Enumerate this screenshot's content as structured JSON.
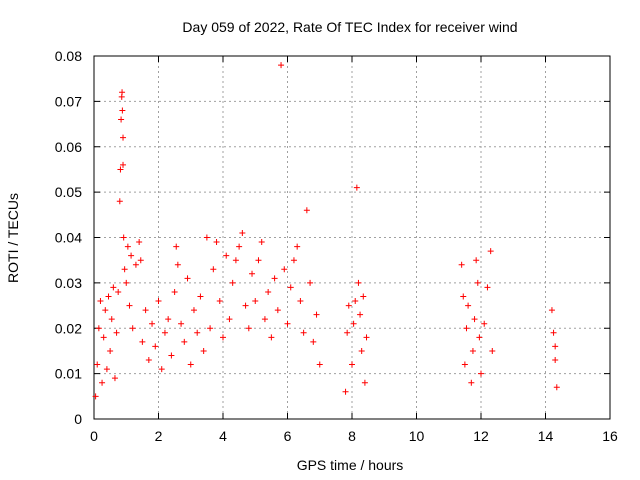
{
  "chart_data": {
    "type": "scatter",
    "title": "Day 059 of 2022, Rate Of TEC Index for receiver wind",
    "xlabel": "GPS time / hours",
    "ylabel": "ROTI / TECUs",
    "xlim": [
      0,
      16
    ],
    "ylim": [
      0,
      0.08
    ],
    "x_ticks": [
      0,
      2,
      4,
      6,
      8,
      10,
      12,
      14,
      16
    ],
    "y_ticks": [
      0,
      0.01,
      0.02,
      0.03,
      0.04,
      0.05,
      0.06,
      0.07,
      0.08
    ],
    "x_tick_labels": [
      "0",
      "2",
      "4",
      "6",
      "8",
      "10",
      "12",
      "14",
      "16"
    ],
    "y_tick_labels": [
      "0",
      "0.01",
      "0.02",
      "0.03",
      "0.04",
      "0.05",
      "0.06",
      "0.07",
      "0.08"
    ],
    "grid": true,
    "marker": "+",
    "color": "#ff0000",
    "series": [
      {
        "points": [
          [
            0.05,
            0.005
          ],
          [
            0.1,
            0.012
          ],
          [
            0.15,
            0.02
          ],
          [
            0.2,
            0.026
          ],
          [
            0.25,
            0.008
          ],
          [
            0.3,
            0.018
          ],
          [
            0.35,
            0.024
          ],
          [
            0.4,
            0.011
          ],
          [
            0.45,
            0.027
          ],
          [
            0.5,
            0.015
          ],
          [
            0.55,
            0.022
          ],
          [
            0.6,
            0.029
          ],
          [
            0.65,
            0.009
          ],
          [
            0.7,
            0.019
          ],
          [
            0.75,
            0.028
          ],
          [
            0.8,
            0.048
          ],
          [
            0.82,
            0.055
          ],
          [
            0.84,
            0.066
          ],
          [
            0.86,
            0.071
          ],
          [
            0.87,
            0.072
          ],
          [
            0.88,
            0.068
          ],
          [
            0.9,
            0.062
          ],
          [
            0.9,
            0.056
          ],
          [
            0.92,
            0.04
          ],
          [
            0.95,
            0.033
          ],
          [
            1.0,
            0.03
          ],
          [
            1.05,
            0.038
          ],
          [
            1.1,
            0.025
          ],
          [
            1.15,
            0.036
          ],
          [
            1.2,
            0.02
          ],
          [
            1.3,
            0.034
          ],
          [
            1.4,
            0.039
          ],
          [
            1.45,
            0.035
          ],
          [
            1.5,
            0.017
          ],
          [
            1.6,
            0.024
          ],
          [
            1.7,
            0.013
          ],
          [
            1.8,
            0.021
          ],
          [
            1.9,
            0.016
          ],
          [
            2.0,
            0.026
          ],
          [
            2.1,
            0.011
          ],
          [
            2.2,
            0.019
          ],
          [
            2.3,
            0.022
          ],
          [
            2.4,
            0.014
          ],
          [
            2.5,
            0.028
          ],
          [
            2.55,
            0.038
          ],
          [
            2.6,
            0.034
          ],
          [
            2.7,
            0.021
          ],
          [
            2.8,
            0.017
          ],
          [
            2.9,
            0.031
          ],
          [
            3.0,
            0.012
          ],
          [
            3.1,
            0.024
          ],
          [
            3.2,
            0.019
          ],
          [
            3.3,
            0.027
          ],
          [
            3.4,
            0.015
          ],
          [
            3.5,
            0.04
          ],
          [
            3.6,
            0.02
          ],
          [
            3.7,
            0.033
          ],
          [
            3.8,
            0.039
          ],
          [
            3.9,
            0.026
          ],
          [
            4.0,
            0.018
          ],
          [
            4.1,
            0.036
          ],
          [
            4.2,
            0.022
          ],
          [
            4.3,
            0.03
          ],
          [
            4.4,
            0.035
          ],
          [
            4.5,
            0.038
          ],
          [
            4.6,
            0.041
          ],
          [
            4.7,
            0.025
          ],
          [
            4.8,
            0.02
          ],
          [
            4.9,
            0.032
          ],
          [
            5.0,
            0.026
          ],
          [
            5.1,
            0.035
          ],
          [
            5.2,
            0.039
          ],
          [
            5.3,
            0.022
          ],
          [
            5.4,
            0.028
          ],
          [
            5.5,
            0.018
          ],
          [
            5.6,
            0.031
          ],
          [
            5.7,
            0.024
          ],
          [
            5.8,
            0.078
          ],
          [
            5.9,
            0.033
          ],
          [
            6.0,
            0.021
          ],
          [
            6.1,
            0.029
          ],
          [
            6.2,
            0.035
          ],
          [
            6.3,
            0.038
          ],
          [
            6.4,
            0.026
          ],
          [
            6.5,
            0.019
          ],
          [
            6.6,
            0.046
          ],
          [
            6.7,
            0.03
          ],
          [
            6.8,
            0.017
          ],
          [
            6.9,
            0.023
          ],
          [
            7.0,
            0.012
          ],
          [
            7.8,
            0.006
          ],
          [
            7.85,
            0.019
          ],
          [
            7.9,
            0.025
          ],
          [
            8.0,
            0.012
          ],
          [
            8.05,
            0.021
          ],
          [
            8.1,
            0.026
          ],
          [
            8.15,
            0.051
          ],
          [
            8.2,
            0.03
          ],
          [
            8.25,
            0.023
          ],
          [
            8.3,
            0.015
          ],
          [
            8.35,
            0.027
          ],
          [
            8.4,
            0.008
          ],
          [
            8.45,
            0.018
          ],
          [
            11.4,
            0.034
          ],
          [
            11.45,
            0.027
          ],
          [
            11.5,
            0.012
          ],
          [
            11.55,
            0.02
          ],
          [
            11.6,
            0.025
          ],
          [
            11.7,
            0.008
          ],
          [
            11.75,
            0.015
          ],
          [
            11.8,
            0.022
          ],
          [
            11.85,
            0.035
          ],
          [
            11.9,
            0.03
          ],
          [
            11.95,
            0.018
          ],
          [
            12.0,
            0.01
          ],
          [
            12.1,
            0.021
          ],
          [
            12.2,
            0.029
          ],
          [
            12.3,
            0.037
          ],
          [
            12.35,
            0.015
          ],
          [
            14.2,
            0.024
          ],
          [
            14.25,
            0.019
          ],
          [
            14.3,
            0.013
          ],
          [
            14.35,
            0.007
          ],
          [
            14.3,
            0.016
          ]
        ]
      }
    ]
  }
}
